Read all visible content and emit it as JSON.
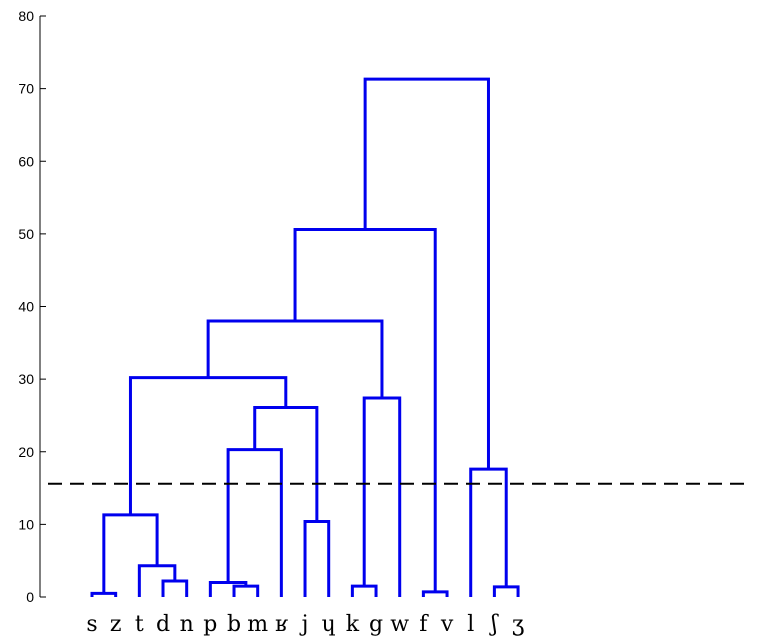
{
  "chart_data": {
    "type": "dendrogram",
    "title": "",
    "xlabel": "",
    "ylabel": "",
    "ylim": [
      0,
      80
    ],
    "yticks": [
      0,
      10,
      20,
      30,
      40,
      50,
      60,
      70,
      80
    ],
    "leaves": [
      "s",
      "z",
      "t",
      "d",
      "n",
      "p",
      "b",
      "m",
      "ʁ",
      "j",
      "ɥ",
      "k",
      "g",
      "w",
      "f",
      "v",
      "l",
      "ʃ",
      "ʒ"
    ],
    "merges": [
      {
        "id": "c1",
        "left": "s",
        "right": "z",
        "height": 0.5
      },
      {
        "id": "c2",
        "left": "d",
        "right": "n",
        "height": 2.2
      },
      {
        "id": "c3",
        "left": "t",
        "right": "c2",
        "height": 4.3
      },
      {
        "id": "c4",
        "left": "c1",
        "right": "c3",
        "height": 11.3
      },
      {
        "id": "c5",
        "left": "b",
        "right": "m",
        "height": 1.5
      },
      {
        "id": "c6",
        "left": "p",
        "right": "c5",
        "height": 2.0
      },
      {
        "id": "c7",
        "left": "c6",
        "right": "ʁ",
        "height": 20.3
      },
      {
        "id": "c8",
        "left": "j",
        "right": "ɥ",
        "height": 10.4
      },
      {
        "id": "c9",
        "left": "c7",
        "right": "c8",
        "height": 26.1
      },
      {
        "id": "c10",
        "left": "c4",
        "right": "c9",
        "height": 30.2
      },
      {
        "id": "c11",
        "left": "k",
        "right": "g",
        "height": 1.5
      },
      {
        "id": "c12",
        "left": "c11",
        "right": "w",
        "height": 27.4
      },
      {
        "id": "c13",
        "left": "c10",
        "right": "c12",
        "height": 38.0
      },
      {
        "id": "c14",
        "left": "f",
        "right": "v",
        "height": 0.7
      },
      {
        "id": "c15",
        "left": "c13",
        "right": "c14",
        "height": 50.6
      },
      {
        "id": "c16",
        "left": "ʃ",
        "right": "ʒ",
        "height": 1.4
      },
      {
        "id": "c17",
        "left": "l",
        "right": "c16",
        "height": 17.6
      },
      {
        "id": "c18",
        "left": "c15",
        "right": "c17",
        "height": 71.3
      }
    ],
    "cutoff_line": {
      "y": 15.6,
      "style": "dashed",
      "color": "#000000"
    },
    "line_color": "#0000ee",
    "grid": false
  }
}
